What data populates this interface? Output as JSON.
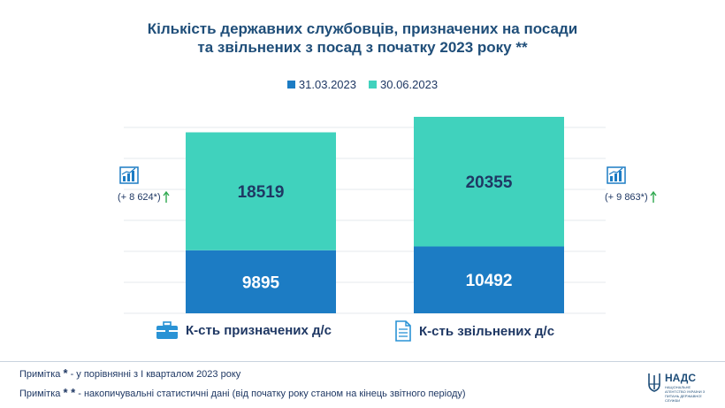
{
  "title_line1": "Кількість державних службовців, призначених на посади",
  "title_line2": "та звільнених з посад з початку 2023 року **",
  "colors": {
    "series1": "#1c7cc4",
    "series2": "#40d2bd",
    "arrow": "#2fa84f"
  },
  "chart_data": {
    "type": "bar",
    "stacked": true,
    "categories": [
      "К-сть призначених д/с",
      "К-сть звільнених д/с"
    ],
    "series": [
      {
        "name": "31.03.2023",
        "values": [
          9895,
          10492
        ]
      },
      {
        "name": "30.06.2023",
        "values": [
          18519,
          20355
        ]
      }
    ],
    "legend": "top-center",
    "grid": true
  },
  "labels": {
    "s1_left": "9895",
    "s2_left": "18519",
    "s1_right": "10492",
    "s2_right": "20355"
  },
  "changes": {
    "left": "(+ 8 624*)",
    "right": "(+ 9 863*)"
  },
  "notes": {
    "note1_label": "Примітка",
    "note1_mark": "*",
    "note1_text": "- у порівнянні з І кварталом 2023 року",
    "note2_label": "Примітка",
    "note2_mark": "* *",
    "note2_text": "- накопичувальні статистичні дані (від початку року станом на кінець звітного періоду)"
  },
  "logo": {
    "name": "НАДС",
    "subtitle": "НАЦІОНАЛЬНЕ АГЕНТСТВО УКРАЇНИ З ПИТАНЬ ДЕРЖАВНОЇ СЛУЖБИ"
  }
}
